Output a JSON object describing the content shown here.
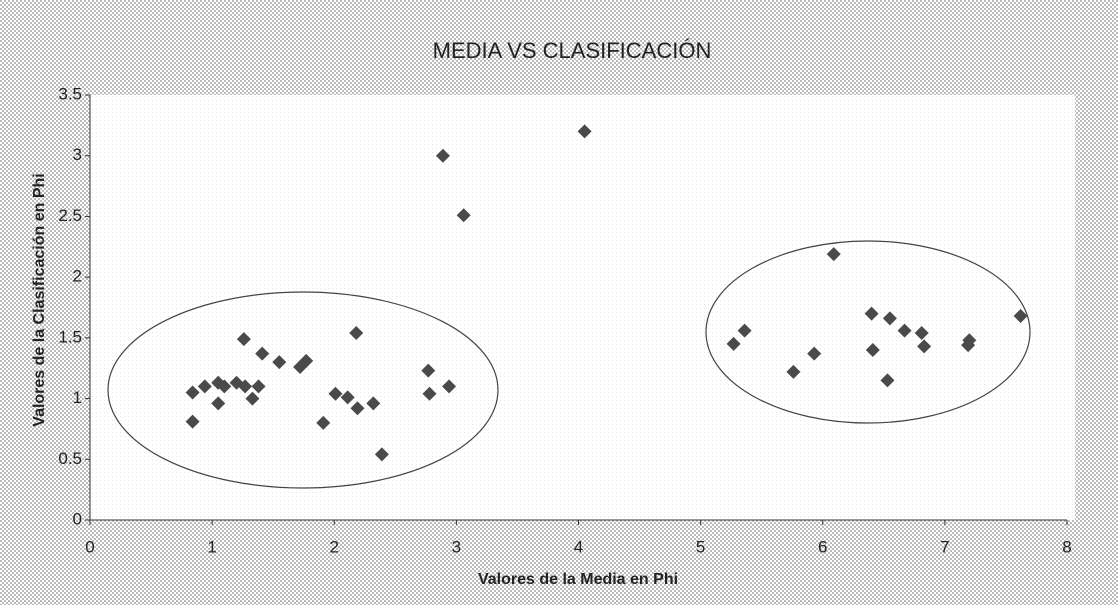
{
  "chart_data": {
    "type": "scatter",
    "title": "MEDIA VS CLASIFICACIÓN",
    "x_label": "Valores de la Media en Phi",
    "y_label": "Valores de la Clasificación en Phi",
    "color": "#4a4a4a",
    "xlim": [
      0,
      8
    ],
    "xticks": [
      0,
      1,
      2,
      3,
      4,
      5,
      6,
      7,
      8
    ],
    "ylim": [
      0,
      3.5
    ],
    "yticks": [
      0,
      0.5,
      1,
      1.5,
      2,
      2.5,
      3,
      3.5
    ],
    "grid": false,
    "x": [
      0.84,
      0.84,
      0.94,
      1.05,
      1.05,
      1.1,
      1.2,
      1.26,
      1.27,
      1.33,
      1.38,
      1.41,
      1.55,
      1.72,
      1.77,
      1.91,
      2.01,
      2.11,
      2.18,
      2.19,
      2.32,
      2.39,
      2.77,
      2.78,
      2.94,
      2.89,
      3.06,
      4.05,
      5.27,
      5.36,
      5.76,
      5.93,
      6.09,
      6.4,
      6.41,
      6.53,
      6.55,
      6.67,
      6.81,
      6.83,
      7.19,
      7.2,
      7.62
    ],
    "values": [
      0.81,
      1.05,
      1.1,
      1.13,
      0.96,
      1.1,
      1.13,
      1.49,
      1.1,
      1.0,
      1.1,
      1.37,
      1.3,
      1.26,
      1.31,
      0.8,
      1.04,
      1.01,
      1.54,
      0.92,
      0.96,
      0.54,
      1.23,
      1.04,
      1.1,
      3.0,
      2.51,
      3.2,
      1.45,
      1.56,
      1.22,
      1.37,
      2.19,
      1.7,
      1.4,
      1.15,
      1.66,
      1.56,
      1.54,
      1.43,
      1.44,
      1.48,
      1.68
    ]
  }
}
